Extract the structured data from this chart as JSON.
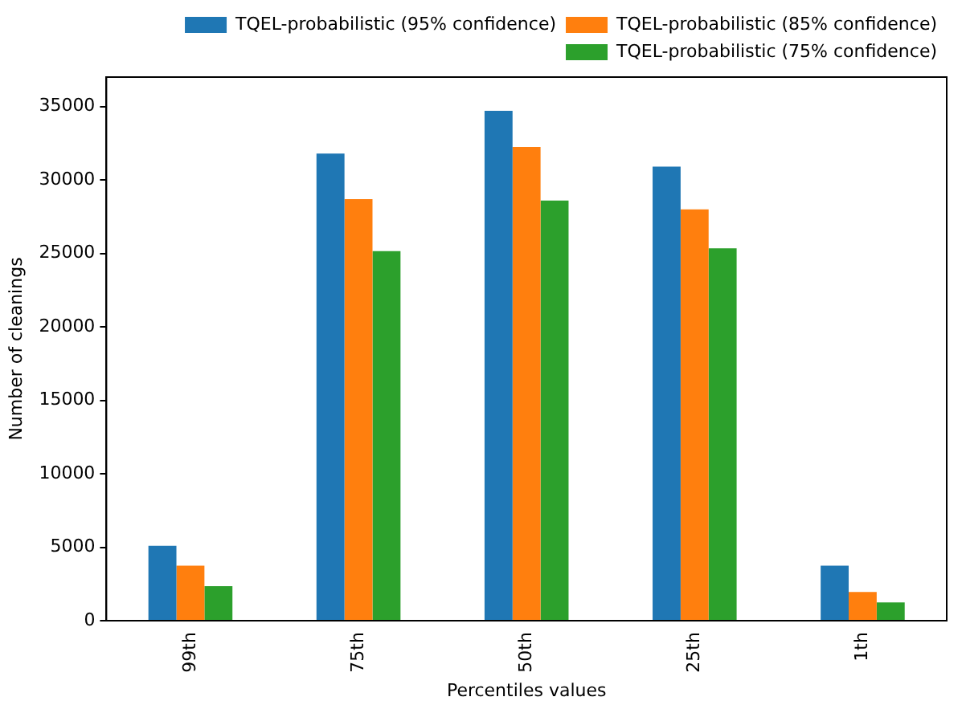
{
  "chart_data": {
    "type": "bar",
    "xlabel": "Percentiles values",
    "ylabel": "Number of cleanings",
    "categories": [
      "99th",
      "75th",
      "50th",
      "25th",
      "1th"
    ],
    "series": [
      {
        "name": "TQEL-probabilistic (95% confidence)",
        "color": "#1f77b4",
        "values": [
          5100,
          31800,
          34700,
          30900,
          3750
        ]
      },
      {
        "name": "TQEL-probabilistic (85% confidence)",
        "color": "#ff7f0e",
        "values": [
          3750,
          28700,
          32250,
          28000,
          1950
        ]
      },
      {
        "name": "TQEL-probabilistic (75% confidence)",
        "color": "#2ca02c",
        "values": [
          2350,
          25150,
          28600,
          25350,
          1250
        ]
      }
    ],
    "ylim": [
      0,
      37000
    ],
    "yticks": [
      0,
      5000,
      10000,
      15000,
      20000,
      25000,
      30000,
      35000
    ],
    "grid": false,
    "legend": "top right"
  }
}
